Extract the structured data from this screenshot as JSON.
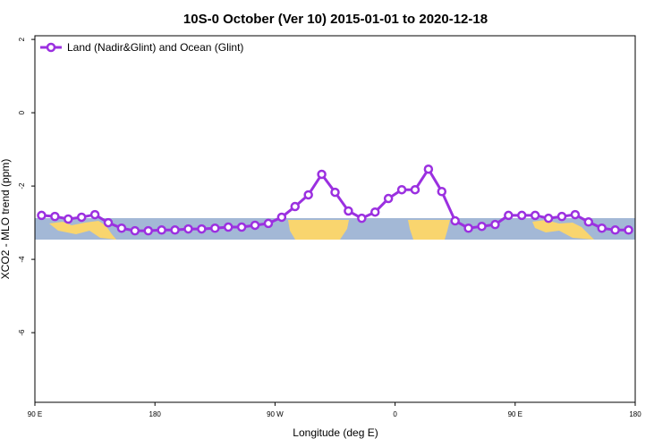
{
  "chart_data": {
    "type": "line",
    "title": "10S-0 October (Ver 10)   2015-01-01 to 2020-12-18",
    "x_label": "Longitude (deg E)",
    "y_label": "XCO2 - MLO trend (ppm)",
    "x": [
      95,
      105,
      115,
      125,
      135,
      145,
      155,
      165,
      175,
      185,
      195,
      205,
      215,
      225,
      235,
      245,
      255,
      265,
      275,
      285,
      295,
      305,
      315,
      325,
      335,
      345,
      355,
      365,
      375,
      385,
      395,
      405,
      415,
      425,
      435,
      445,
      455,
      465,
      475,
      485,
      495,
      505,
      515,
      525,
      535
    ],
    "series": [
      {
        "name": "Land (Nadir&Glint) and Ocean (Glint)",
        "color": "#9b30e0",
        "values": [
          -2.8,
          -2.83,
          -2.9,
          -2.85,
          -2.78,
          -3.0,
          -3.15,
          -3.22,
          -3.22,
          -3.2,
          -3.2,
          -3.17,
          -3.17,
          -3.15,
          -3.12,
          -3.12,
          -3.07,
          -3.02,
          -2.85,
          -2.56,
          -2.24,
          -1.68,
          -2.17,
          -2.68,
          -2.88,
          -2.71,
          -2.34,
          -2.1,
          -2.1,
          -1.54,
          -2.15,
          -2.95,
          -3.15,
          -3.1,
          -3.05,
          -2.8,
          -2.8,
          -2.8,
          -2.88,
          -2.83,
          -2.78,
          -2.98,
          -3.15,
          -3.2,
          -3.2
        ]
      }
    ],
    "xlim": [
      90,
      540
    ],
    "xticks": [
      {
        "value": 90,
        "label": "90 E"
      },
      180,
      {
        "value": 270,
        "label": "90 W"
      },
      {
        "value": 360,
        "label": "0"
      },
      {
        "value": 450,
        "label": "90 E"
      },
      {
        "value": 540,
        "label": "180"
      }
    ],
    "ylim": [
      -7.9,
      2.1
    ],
    "yticks": [
      2,
      0,
      -2,
      -4,
      -6
    ],
    "legend": "top-left"
  }
}
